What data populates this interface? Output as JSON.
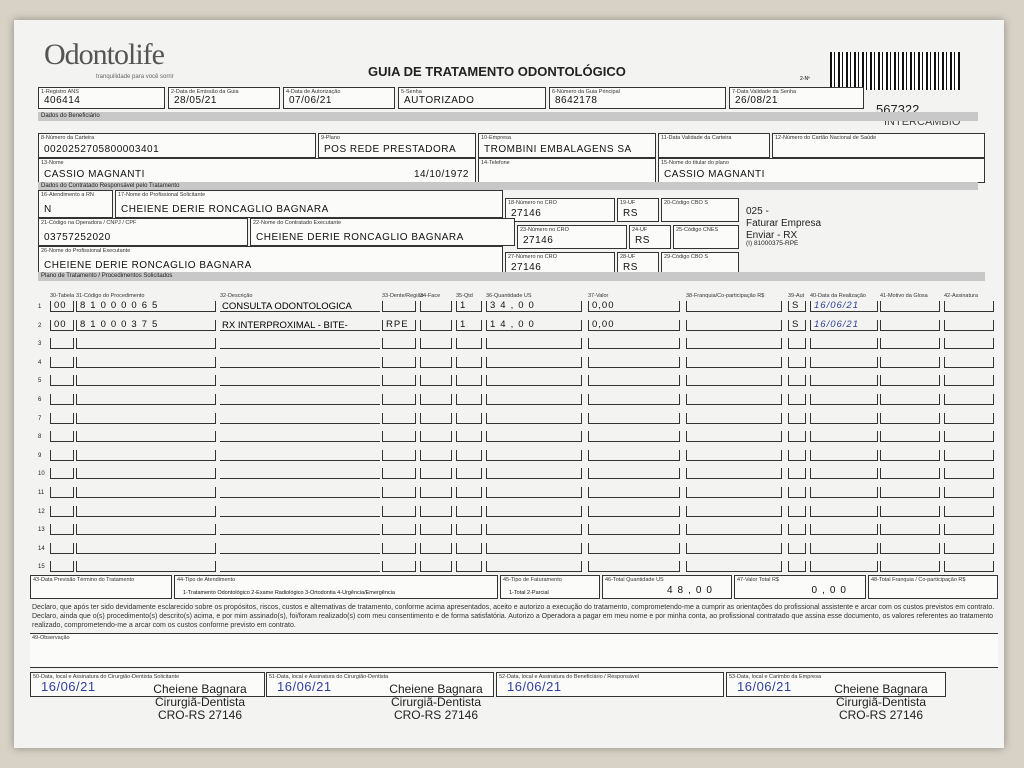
{
  "header": {
    "logo": "Odontolife",
    "tagline": "tranquilidade para você sorrir",
    "title": "GUIA DE TRATAMENTO ODONTOLÓGICO",
    "barcode_label": "2-Nº",
    "number": "567322",
    "note": "INTERCÂMBIO"
  },
  "sections": {
    "beneficiario": "Dados do Beneficiário",
    "contratado": "Dados do Contratado Responsável pelo Tratamento",
    "plano": "Plano de Tratamento / Procedimentos Solicitados"
  },
  "fields": [
    {
      "label": "1-Registro ANS",
      "value": "406414"
    },
    {
      "label": "2-Data de Emissão da Guia",
      "value": "28/05/21"
    },
    {
      "label": "4-Data de Autorização",
      "value": "07/06/21"
    },
    {
      "label": "5-Senha",
      "value": "AUTORIZADO"
    },
    {
      "label": "6-Número da Guia Principal",
      "value": "8642178"
    },
    {
      "label": "7-Data Validade da Senha",
      "value": "26/08/21"
    },
    {
      "label": "8-Número da Carteira",
      "value": "0020252705800003401"
    },
    {
      "label": "9-Plano",
      "value": "POS REDE PRESTADORA"
    },
    {
      "label": "10-Empresa",
      "value": "TROMBINI EMBALAGENS SA"
    },
    {
      "label": "11-Data Validade da Carteira"
    },
    {
      "label": "12-Número do Cartão Nacional de Saúde"
    },
    {
      "label": "13-Nome",
      "value": "CASSIO MAGNANTI",
      "extra": "14/10/1972"
    },
    {
      "label": "14-Telefone"
    },
    {
      "label": "15-Nome do titular do plano",
      "value": "CASSIO MAGNANTI"
    },
    {
      "label": "16-Atendimento a RN",
      "value": "N"
    },
    {
      "label": "17-Nome do Profissional Solicitante",
      "value": "CHEIENE DERIE RONCAGLIO BAGNARA"
    },
    {
      "label": "18-Número no CRO",
      "value": "27146"
    },
    {
      "label": "19-UF",
      "value": "RS"
    },
    {
      "label": "20-Código CBO S"
    },
    {
      "label": "21-Código na Operadora / CNPJ / CPF",
      "value": "03757252020"
    },
    {
      "label": "22-Nome do Contratado Executante",
      "value": "CHEIENE DERIE RONCAGLIO BAGNARA"
    },
    {
      "label": "23-Número no CRO",
      "value": "27146"
    },
    {
      "label": "24-UF",
      "value": "RS"
    },
    {
      "label": "25-Código CNES"
    },
    {
      "label": "26-Nome do Profissional Executante",
      "value": "CHEIENE DERIE RONCAGLIO BAGNARA"
    },
    {
      "label": "27-Número no CRO",
      "value": "27146"
    },
    {
      "label": "28-UF",
      "value": "RS"
    },
    {
      "label": "29-Código CBO S"
    }
  ],
  "side_notes": [
    "025 -",
    "Faturar Empresa",
    "Enviar - RX",
    "(I) 81000375-RPE"
  ],
  "table": {
    "headers": [
      "30-Tabela",
      "31-Código do Procedimento",
      "32-Descrição",
      "33-Dente/Região",
      "34-Face",
      "35-Qtd",
      "36-Quantidade US",
      "37-Valor",
      "38-Franquia/Co-participação R$",
      "39-Aut",
      "40-Data da Realização",
      "41-Motivo da Glosa",
      "42-Assinatura"
    ],
    "rows": [
      {
        "num": "1",
        "tabela": "00",
        "codigo": "81000065",
        "descricao": "CONSULTA ODONTOLOGICA",
        "qtd": "1",
        "us": "34,00",
        "valor": "0,00",
        "aut": "S",
        "data": "16/06/21"
      },
      {
        "num": "2",
        "tabela": "00",
        "codigo": "81000375",
        "descricao": "RX INTERPROXIMAL - BITE-",
        "dente": "RPE",
        "qtd": "1",
        "us": "14,00",
        "valor": "0,00",
        "aut": "S",
        "data": "16/06/21"
      },
      {
        "num": "3"
      },
      {
        "num": "4"
      },
      {
        "num": "5"
      },
      {
        "num": "6"
      },
      {
        "num": "7"
      },
      {
        "num": "8"
      },
      {
        "num": "9"
      },
      {
        "num": "10"
      },
      {
        "num": "11"
      },
      {
        "num": "12"
      },
      {
        "num": "13"
      },
      {
        "num": "14"
      },
      {
        "num": "15"
      }
    ]
  },
  "footer_fields": [
    {
      "label": "43-Data Previsão Término do Tratamento"
    },
    {
      "label": "44-Tipo de Atendimento",
      "value": "1-Tratamento Odontológico  2-Exame Radiológico  3-Ortodontia  4-Urgência/Emergência"
    },
    {
      "label": "45-Tipo de Faturamento",
      "value": "1-Total  2-Parcial"
    },
    {
      "label": "46-Total Quantidade US",
      "value": "48,00"
    },
    {
      "label": "47-Valor Total R$",
      "value": "0,00"
    },
    {
      "label": "48-Total Franquia / Co-participação R$"
    }
  ],
  "declaration": "Declaro, que após ter sido devidamente esclarecido sobre os propósitos, riscos, custos e alternativas de tratamento, conforme acima apresentados, aceito e autorizo a execução do tratamento, comprometendo-me a cumprir as orientações do profissional assistente e arcar com os custos previstos em contrato. Declaro, ainda que o(s) procedimento(s) descrito(s) acima, e por mim assinado(s), foi/foram realizado(s) com meu consentimento e de forma satisfatória. Autorizo a Operadora a pagar em meu nome e por minha conta, ao profissional contratado que assina esse documento, os valores referentes ao tratamento realizado, comprometendo-me a arcar com os custos conforme previsto em contrato.",
  "observacao": "49-Observação",
  "signatures": [
    {
      "label": "50-Data, local e Assinatura do Cirurgião-Dentista Solicitante",
      "date": "16/06/21",
      "stamp": [
        "Cheiene Bagnara",
        "Cirurgiã-Dentista",
        "CRO-RS 27146"
      ]
    },
    {
      "label": "51-Data, local e Assinatura do Cirurgião-Dentista",
      "date": "16/06/21",
      "stamp": [
        "Cheiene Bagnara",
        "Cirurgiã-Dentista",
        "CRO-RS 27146"
      ]
    },
    {
      "label": "52-Data, local e Assinatura do Beneficiário / Responsável",
      "date": "16/06/21"
    },
    {
      "label": "53-Data, local e Carimbo da Empresa",
      "date": "16/06/21",
      "stamp": [
        "Cheiene Bagnara",
        "Cirurgiã-Dentista",
        "CRO-RS 27146"
      ]
    }
  ]
}
